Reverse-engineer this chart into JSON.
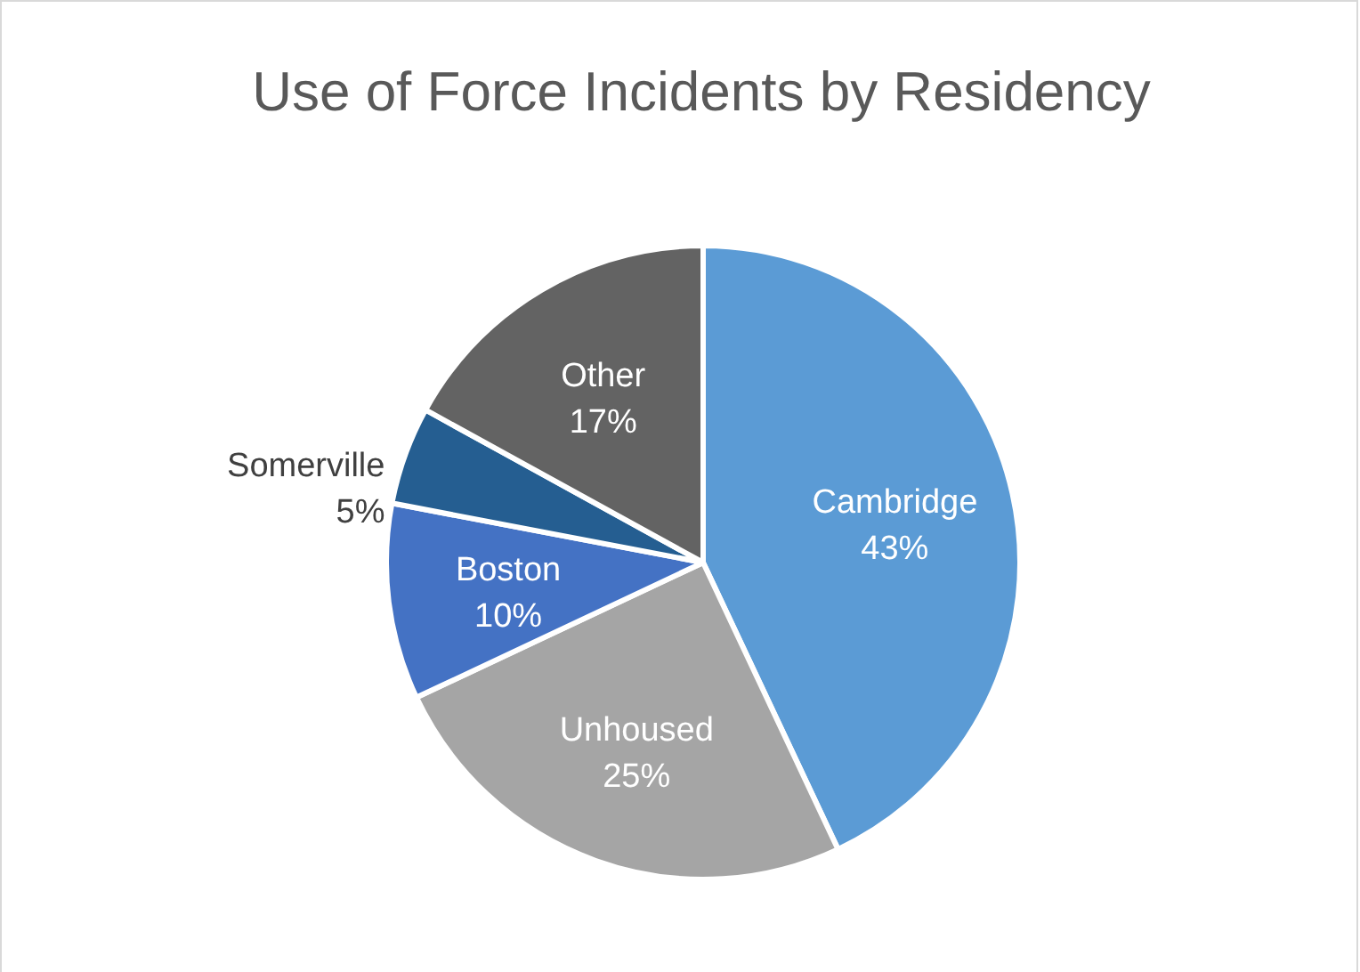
{
  "chart_data": {
    "type": "pie",
    "title": "Use of Force Incidents by Residency",
    "categories": [
      "Cambridge",
      "Unhoused",
      "Boston",
      "Somerville",
      "Other"
    ],
    "values": [
      43,
      25,
      10,
      5,
      17
    ],
    "colors": [
      "#5b9bd5",
      "#a5a5a5",
      "#4472c4",
      "#255e91",
      "#636363"
    ],
    "value_labels": [
      "43%",
      "25%",
      "10%",
      "5%",
      "17%"
    ],
    "legend": false
  }
}
